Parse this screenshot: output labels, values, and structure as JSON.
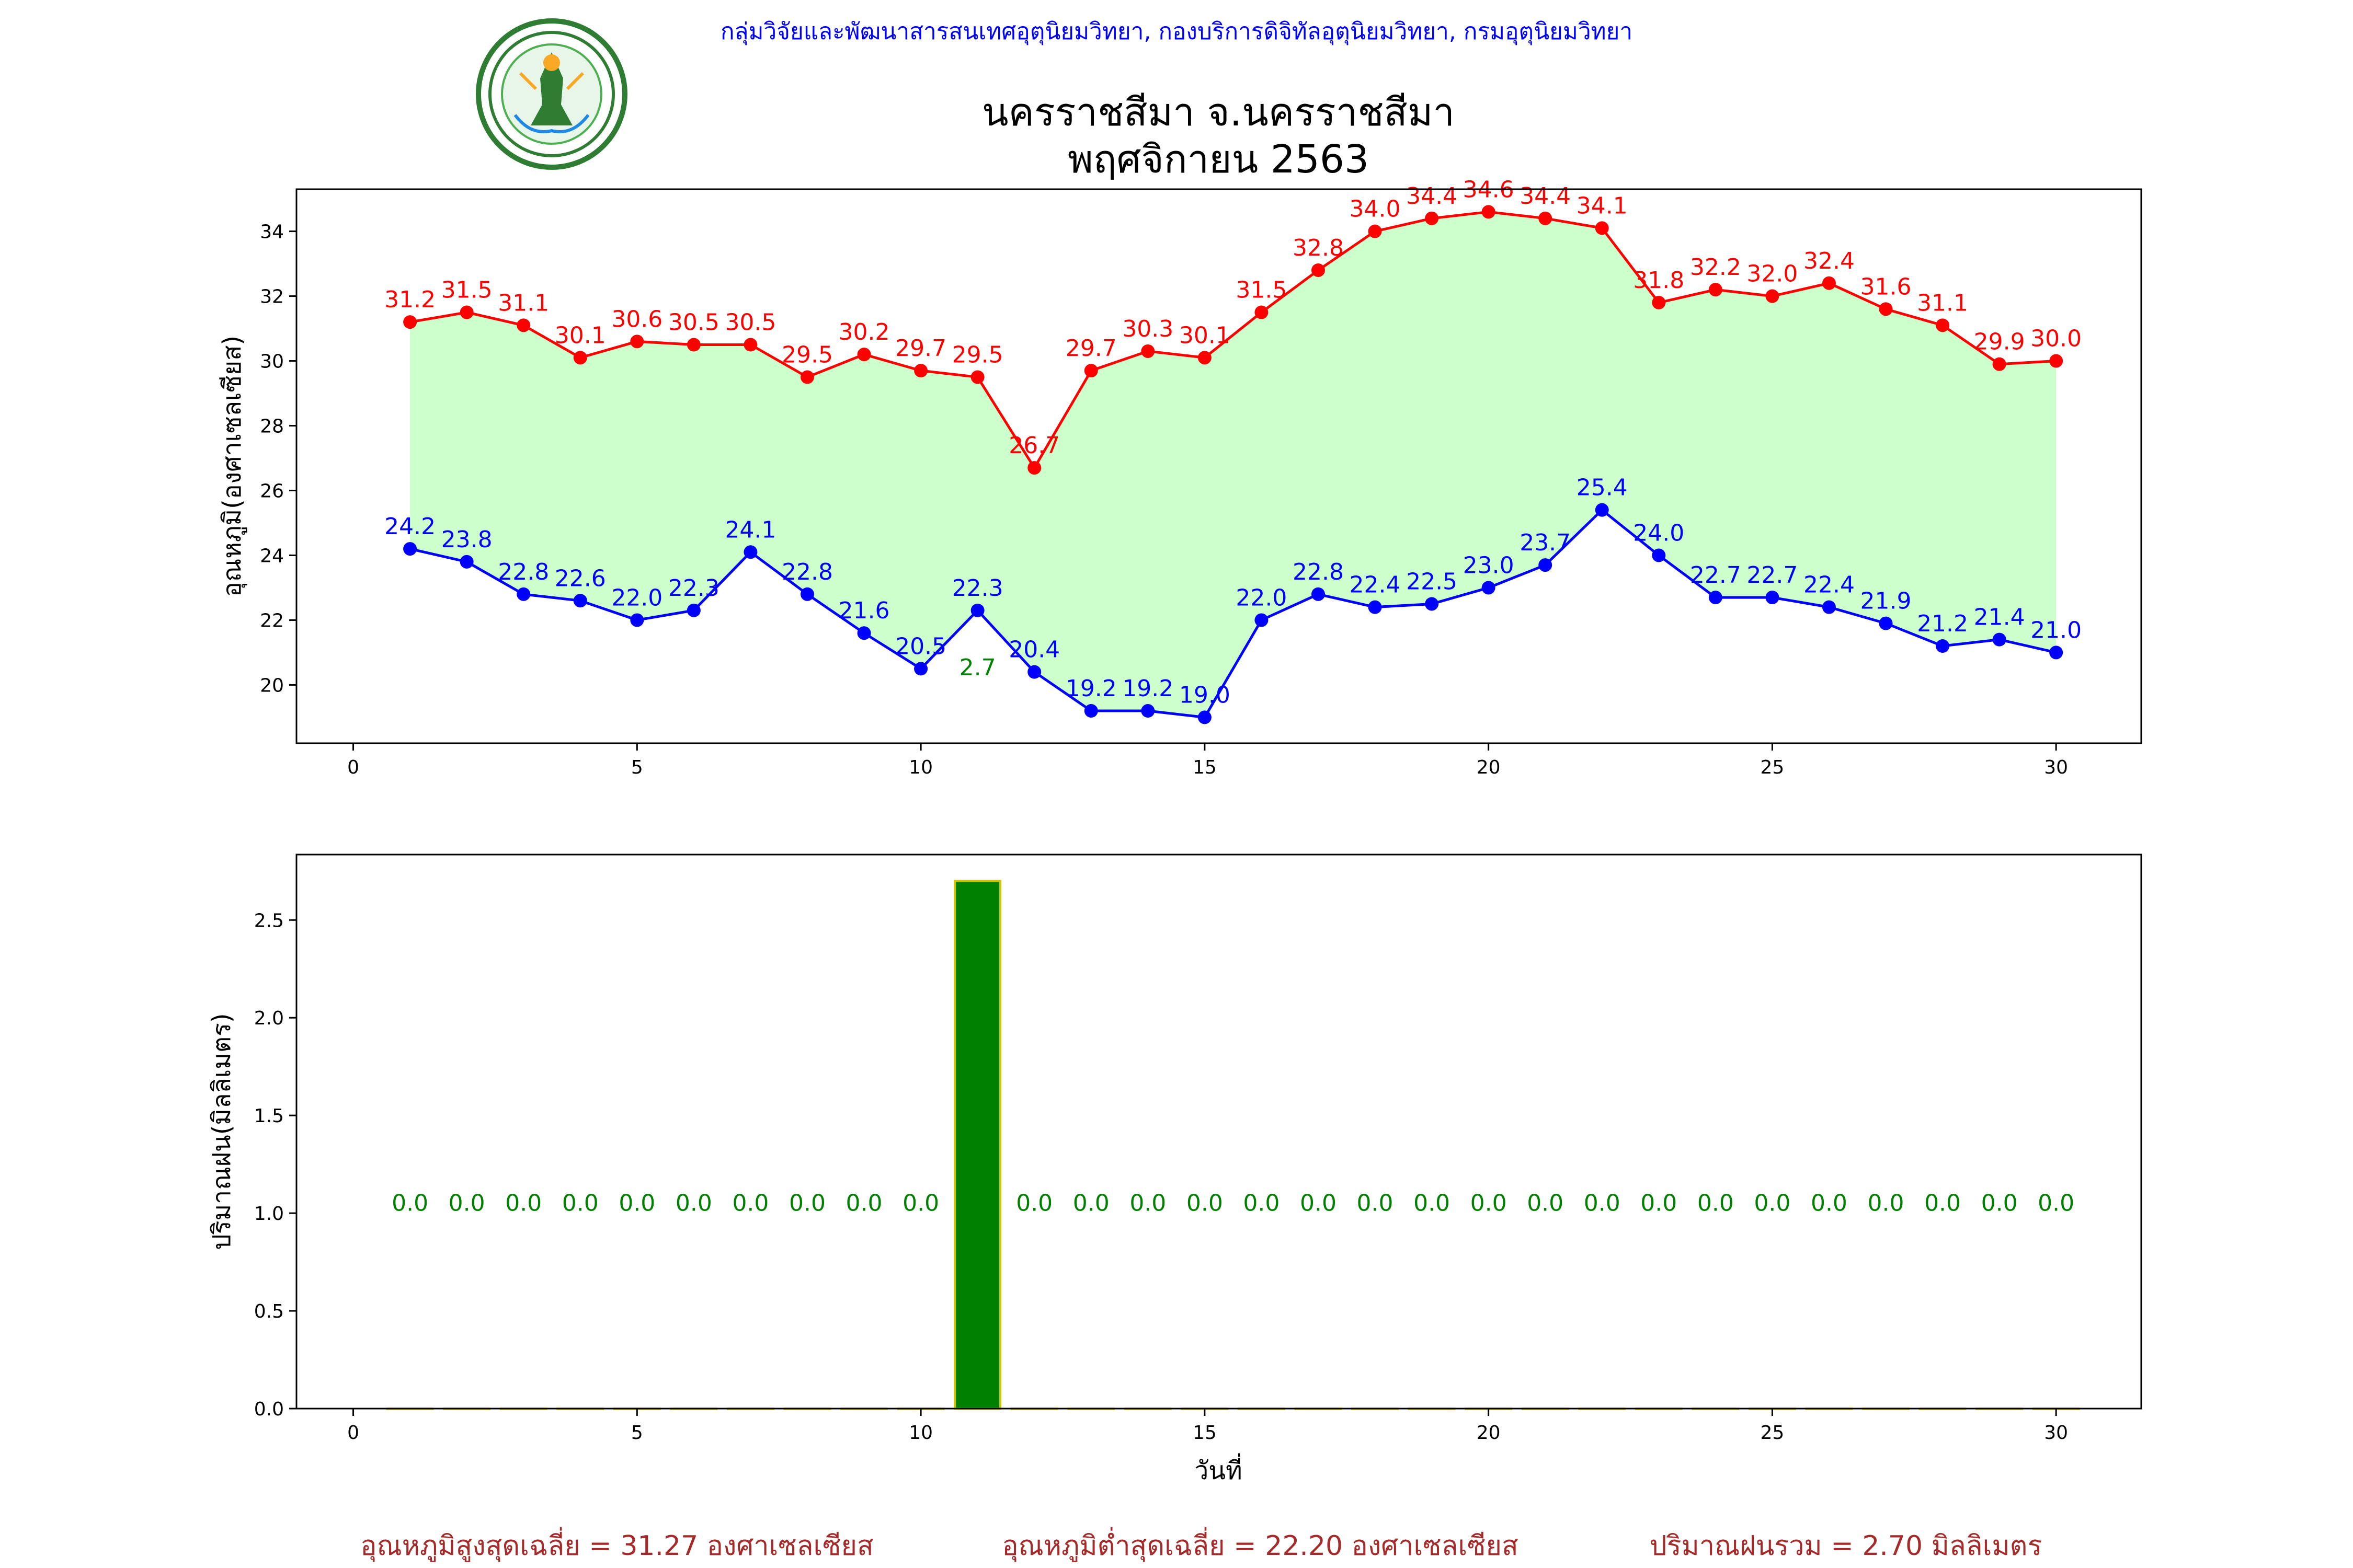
{
  "header": {
    "organization": "กลุ่มวิจัยและพัฒนาสารสนเทศอุตุนิยมวิทยา, กองบริการดิจิทัลอุตุนิยมวิทยา, กรมอุตุนิยมวิทยา",
    "title_line1": "นครราชสีมา จ.นครราชสีมา",
    "title_line2": "พฤศจิกายน 2563",
    "logo_name": "meteorological-department-seal"
  },
  "summary": {
    "avg_max": "อุณหภูมิสูงสุดเฉลี่ย = 31.27 องศาเซลเซียส",
    "avg_min": "อุณหภูมิต่ำสุดเฉลี่ย = 22.20 องศาเซลเซียส",
    "total_rain": "ปริมาณฝนรวม = 2.70 มิลลิเมตร"
  },
  "colors": {
    "max_line": "#ff0000",
    "min_line": "#0000ff",
    "fill": "#ccffcc",
    "rain_bar": "#008000",
    "rain_edge": "#d4c400",
    "rain_label": "#008000",
    "summary": "#a52a2a",
    "org": "#0000ff"
  },
  "chart_data": [
    {
      "type": "line",
      "ylabel": "อุณหภูมิ(องศาเซลเซียส)",
      "xlim": [
        -1,
        31.5
      ],
      "ylim": [
        18.2,
        35.3
      ],
      "xticks": [
        0,
        5,
        10,
        15,
        20,
        25,
        30
      ],
      "yticks": [
        20,
        22,
        24,
        26,
        28,
        30,
        32,
        34
      ],
      "x": [
        1,
        2,
        3,
        4,
        5,
        6,
        7,
        8,
        9,
        10,
        11,
        12,
        13,
        14,
        15,
        16,
        17,
        18,
        19,
        20,
        21,
        22,
        23,
        24,
        25,
        26,
        27,
        28,
        29,
        30
      ],
      "series": [
        {
          "key": "max",
          "values": [
            31.2,
            31.5,
            31.1,
            30.1,
            30.6,
            30.5,
            30.5,
            29.5,
            30.2,
            29.7,
            29.5,
            26.7,
            29.7,
            30.3,
            30.1,
            31.5,
            32.8,
            34.0,
            34.4,
            34.6,
            34.4,
            34.1,
            31.8,
            32.2,
            32.0,
            32.4,
            31.6,
            31.1,
            29.9,
            30.0
          ]
        },
        {
          "key": "min",
          "values": [
            24.2,
            23.8,
            22.8,
            22.6,
            22.0,
            22.3,
            24.1,
            22.8,
            21.6,
            20.5,
            22.3,
            20.4,
            19.2,
            19.2,
            19.0,
            22.0,
            22.8,
            22.4,
            22.5,
            23.0,
            23.7,
            25.4,
            24.0,
            22.7,
            22.7,
            22.4,
            21.9,
            21.2,
            21.4,
            21.0
          ]
        }
      ],
      "annotations": [
        {
          "x": 11,
          "y": 20.3,
          "text": "2.7"
        }
      ]
    },
    {
      "type": "bar",
      "ylabel": "ปริมาณฝน(มิลลิเมตร)",
      "xlabel": "วันที่",
      "xlim": [
        -1,
        31.5
      ],
      "ylim": [
        0,
        2.835
      ],
      "xticks": [
        0,
        5,
        10,
        15,
        20,
        25,
        30
      ],
      "yticks": [
        0.0,
        0.5,
        1.0,
        1.5,
        2.0,
        2.5
      ],
      "x": [
        1,
        2,
        3,
        4,
        5,
        6,
        7,
        8,
        9,
        10,
        11,
        12,
        13,
        14,
        15,
        16,
        17,
        18,
        19,
        20,
        21,
        22,
        23,
        24,
        25,
        26,
        27,
        28,
        29,
        30
      ],
      "values": [
        0,
        0,
        0,
        0,
        0,
        0,
        0,
        0,
        0,
        0,
        2.7,
        0,
        0,
        0,
        0,
        0,
        0,
        0,
        0,
        0,
        0,
        0,
        0,
        0,
        0,
        0,
        0,
        0,
        0,
        0
      ],
      "label_y": 1.05
    }
  ]
}
